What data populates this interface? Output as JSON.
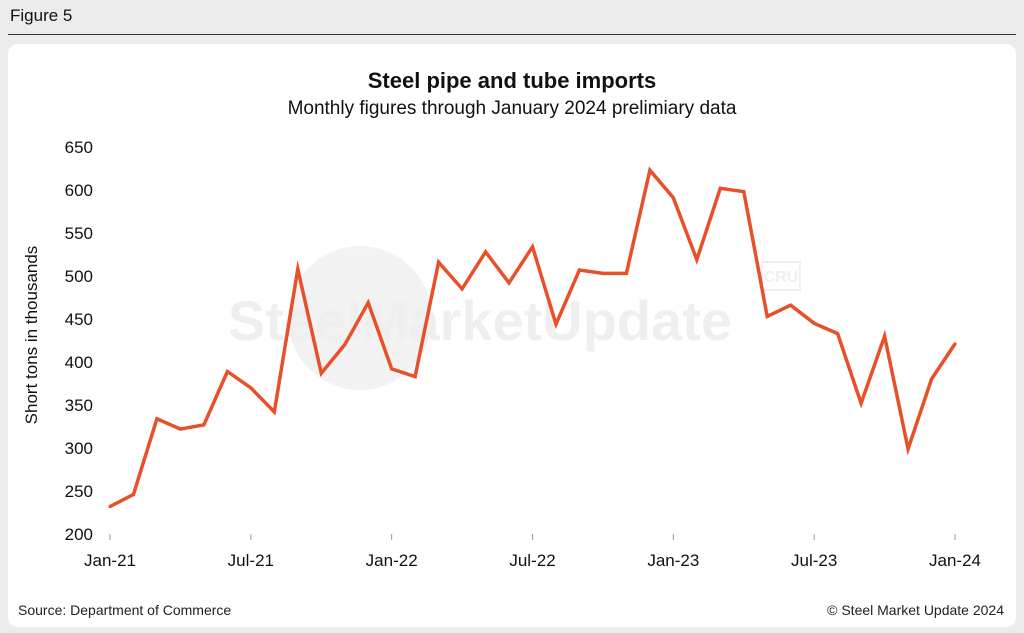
{
  "figure_label": "Figure 5",
  "source": "Source: Department of Commerce",
  "copyright": "© Steel Market Update 2024",
  "watermark": {
    "text": "SteelMarketUpdate",
    "badge": "CRU"
  },
  "chart_data": {
    "type": "line",
    "title": "Steel pipe and tube imports",
    "subtitle": "Monthly figures through January 2024 prelimiary data",
    "xlabel": "",
    "ylabel": "Short tons in thousands",
    "ylim": [
      200,
      650
    ],
    "yticks": [
      200,
      250,
      300,
      350,
      400,
      450,
      500,
      550,
      600,
      650
    ],
    "xtick_labels": [
      "Jan-21",
      "Jul-21",
      "Jan-22",
      "Jul-22",
      "Jan-23",
      "Jul-23",
      "Jan-24"
    ],
    "xtick_indices": [
      0,
      6,
      12,
      18,
      24,
      30,
      36
    ],
    "grid": false,
    "line_color": "#e8502a",
    "categories": [
      "Jan-21",
      "Feb-21",
      "Mar-21",
      "Apr-21",
      "May-21",
      "Jun-21",
      "Jul-21",
      "Aug-21",
      "Sep-21",
      "Oct-21",
      "Nov-21",
      "Dec-21",
      "Jan-22",
      "Feb-22",
      "Mar-22",
      "Apr-22",
      "May-22",
      "Jun-22",
      "Jul-22",
      "Aug-22",
      "Sep-22",
      "Oct-22",
      "Nov-22",
      "Dec-22",
      "Jan-23",
      "Feb-23",
      "Mar-23",
      "Apr-23",
      "May-23",
      "Jun-23",
      "Jul-23",
      "Aug-23",
      "Sep-23",
      "Oct-23",
      "Nov-23",
      "Dec-23",
      "Jan-24"
    ],
    "values": [
      232,
      246,
      334,
      322,
      327,
      389,
      370,
      342,
      508,
      387,
      420,
      469,
      392,
      383,
      516,
      485,
      528,
      492,
      534,
      444,
      507,
      503,
      503,
      623,
      591,
      519,
      602,
      598,
      453,
      466,
      445,
      433,
      352,
      430,
      299,
      380,
      421
    ]
  }
}
